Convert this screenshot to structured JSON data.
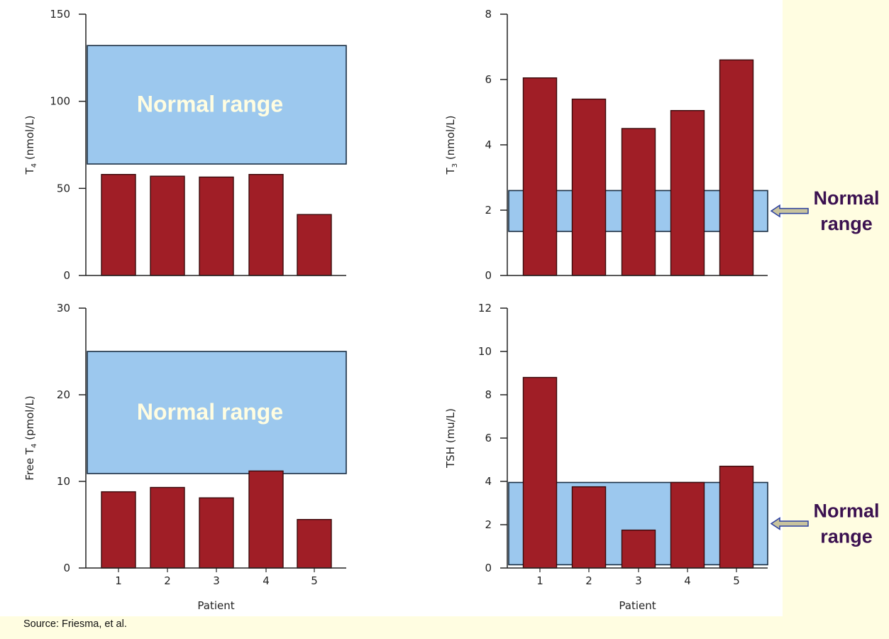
{
  "colors": {
    "bar": "#a01e26",
    "bar_stroke": "#3a0a0c",
    "normal_band": "#9cc8ee",
    "normal_band_stroke": "#1b2f44",
    "arrow_fill": "#c8c39e",
    "arrow_stroke": "#2a3fa0",
    "background": "#fffde1"
  },
  "source_note": "Source: Friesma, et al.",
  "chart_data": [
    {
      "type": "bar",
      "categories": [
        "1",
        "2",
        "3",
        "4",
        "5"
      ],
      "values": [
        58,
        57,
        56.5,
        58,
        35
      ],
      "ylabel_main": "T",
      "ylabel_sub": "4",
      "ylabel_rest": " (nmol/L)",
      "xlabel": "",
      "ylim": [
        0,
        150
      ],
      "yticks": [
        "0",
        "50",
        "100",
        "150"
      ],
      "show_x_ticks": false,
      "normal_range": {
        "low": 64,
        "high": 132,
        "label": "Normal range",
        "label_position": "inside"
      }
    },
    {
      "type": "bar",
      "categories": [
        "1",
        "2",
        "3",
        "4",
        "5"
      ],
      "values": [
        6.05,
        5.4,
        4.5,
        5.05,
        6.6
      ],
      "ylabel_main": "T",
      "ylabel_sub": "3",
      "ylabel_rest": " (nmol/L)",
      "xlabel": "",
      "ylim": [
        0,
        8
      ],
      "yticks": [
        "0",
        "2",
        "4",
        "6",
        "8"
      ],
      "show_x_ticks": false,
      "normal_range": {
        "low": 1.35,
        "high": 2.6,
        "label_line1": "Normal",
        "label_line2": "range",
        "label_position": "right"
      }
    },
    {
      "type": "bar",
      "categories": [
        "1",
        "2",
        "3",
        "4",
        "5"
      ],
      "values": [
        8.8,
        9.3,
        8.1,
        11.2,
        5.6
      ],
      "ylabel_main": "Free T",
      "ylabel_sub": "4",
      "ylabel_rest": " (pmol/L)",
      "xlabel": "Patient",
      "ylim": [
        0,
        30
      ],
      "yticks": [
        "0",
        "10",
        "20",
        "30"
      ],
      "show_x_ticks": true,
      "normal_range": {
        "low": 10.9,
        "high": 25,
        "label": "Normal range",
        "label_position": "inside"
      }
    },
    {
      "type": "bar",
      "categories": [
        "1",
        "2",
        "3",
        "4",
        "5"
      ],
      "values": [
        8.8,
        3.75,
        1.75,
        3.95,
        4.7
      ],
      "ylabel_main": "TSH (mu/L)",
      "ylabel_sub": "",
      "ylabel_rest": "",
      "xlabel": "Patient",
      "ylim": [
        0,
        12
      ],
      "yticks": [
        "0",
        "2",
        "4",
        "6",
        "8",
        "10",
        "12"
      ],
      "show_x_ticks": true,
      "normal_range": {
        "low": 0.15,
        "high": 3.95,
        "label_line1": "Normal",
        "label_line2": "range",
        "label_position": "right"
      }
    }
  ]
}
